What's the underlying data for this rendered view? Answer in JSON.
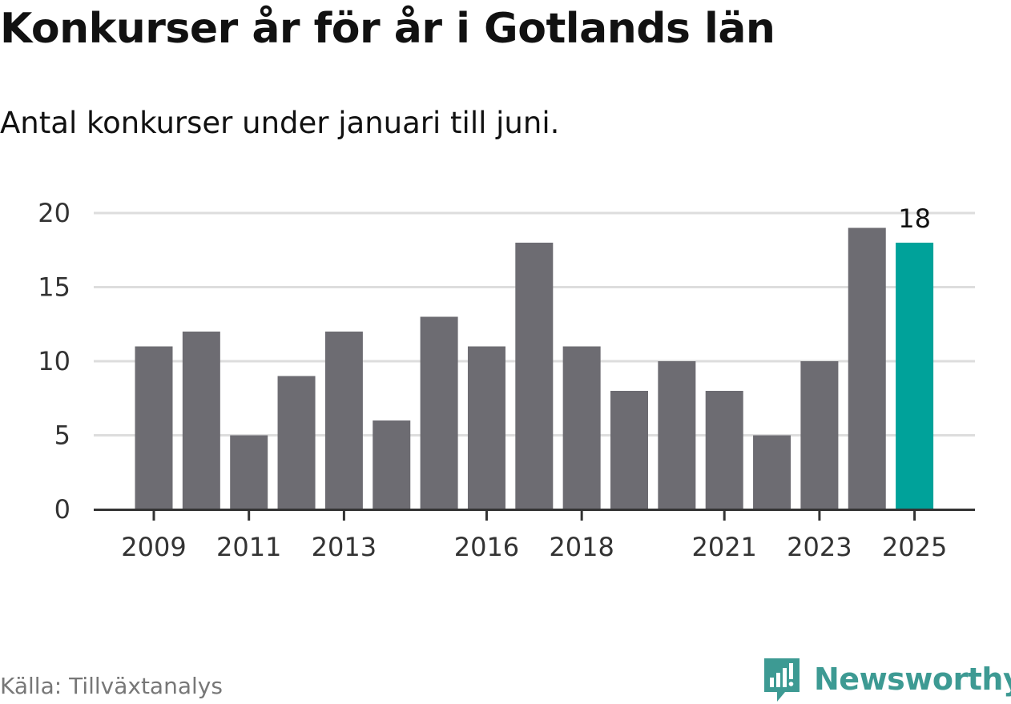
{
  "title": "Konkurser år för år i Gotlands län",
  "subtitle": "Antal konkurser under januari till juni.",
  "source": "Källa: Tillväxtanalys",
  "brand": {
    "name": "Newsworthy",
    "icon": "newsworthy-logo-icon"
  },
  "colors": {
    "bar": "#6d6c72",
    "highlight": "#00a29a",
    "grid": "#dddddd",
    "axis": "#333333",
    "brand": "#3d9a93"
  },
  "chart_data": {
    "type": "bar",
    "categories": [
      "2009",
      "2010",
      "2011",
      "2012",
      "2013",
      "2014",
      "2015",
      "2016",
      "2017",
      "2018",
      "2019",
      "2020",
      "2021",
      "2022",
      "2023",
      "2024",
      "2025"
    ],
    "values": [
      11,
      12,
      5,
      9,
      12,
      6,
      13,
      11,
      18,
      11,
      8,
      10,
      8,
      5,
      10,
      19,
      18
    ],
    "highlight_index": 16,
    "labeled_categories": [
      "2009",
      "2011",
      "2013",
      "2016",
      "2018",
      "2021",
      "2023",
      "2025"
    ],
    "data_labels": [
      {
        "category": "2025",
        "text": "18"
      }
    ],
    "yticks": [
      0,
      5,
      10,
      15,
      20
    ],
    "ylim": [
      0,
      20
    ],
    "grid": true,
    "xlabel": "",
    "ylabel": ""
  }
}
